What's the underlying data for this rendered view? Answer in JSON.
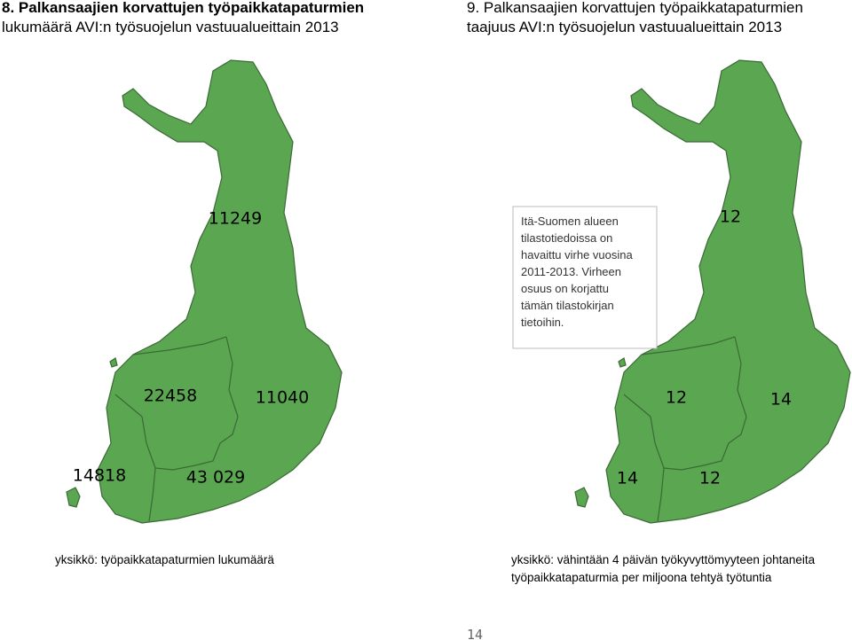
{
  "left_map": {
    "title": [
      "8. Palkansaajien korvattujen työpaikkatapaturmien",
      "lukumäärä AVI:n työsuojelun vastuualueittain 2013"
    ],
    "regions": [
      "11249",
      "22458",
      "11040",
      "14818",
      "43 029"
    ],
    "unit": [
      "yksikkö: työpaikkatapaturmien lukumäärä"
    ]
  },
  "right_map": {
    "title": [
      "9. Palkansaajien korvattujen työpaikkatapaturmien",
      "taajuus AVI:n työsuojelun vastuualueittain 2013"
    ],
    "regions": [
      "12",
      "12",
      "14",
      "14",
      "12"
    ],
    "note": [
      "Itä-Suomen alueen",
      "tilastotiedoissa on",
      "havaittu virhe vuosina",
      "2011-2013. Virheen",
      "osuus on korjattu",
      "tämän tilastokirjan",
      "tietoihin."
    ],
    "unit": [
      "yksikkö: vähintään 4 päivän työkyvyttömyyteen johtaneita",
      "työpaikkatapaturmia per miljoona tehtyä työtuntia"
    ]
  },
  "page_number": "14"
}
